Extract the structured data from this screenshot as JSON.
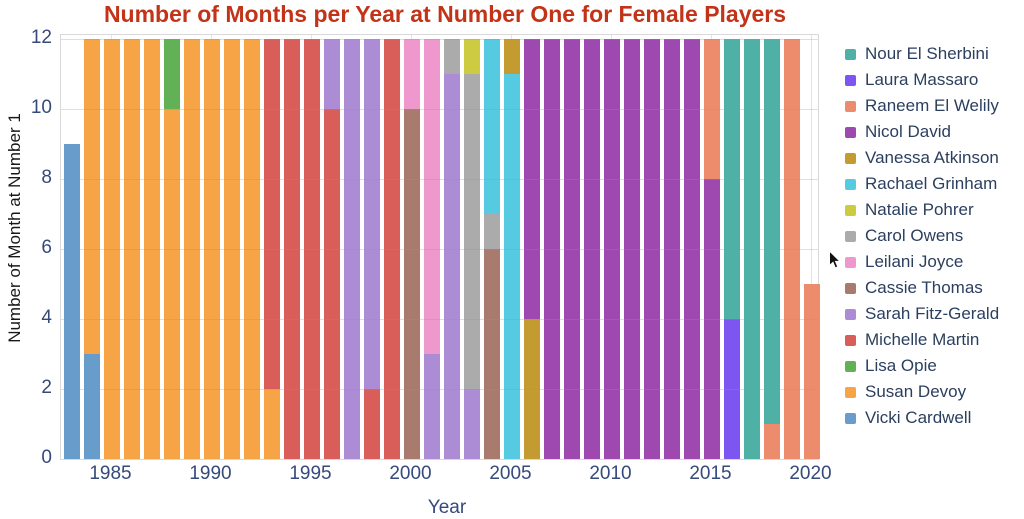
{
  "title": {
    "text": "Number of Months per Year at Number One for Female Players",
    "color": "#c23318"
  },
  "axes": {
    "x_label": "Year",
    "y_label": "Number of Month at Number 1",
    "x_ticks": [
      "1985",
      "1990",
      "1995",
      "2000",
      "2005",
      "2010",
      "2015",
      "2020"
    ],
    "y_ticks": [
      "0",
      "2",
      "4",
      "6",
      "8",
      "10",
      "12"
    ]
  },
  "legend": {
    "items": [
      {
        "label": "Nour El Sherbini",
        "color": "#4fb0a5"
      },
      {
        "label": "Laura Massaro",
        "color": "#7d55f0"
      },
      {
        "label": "Raneem El Welily",
        "color": "#ec8c6c"
      },
      {
        "label": "Nicol David",
        "color": "#9d49af"
      },
      {
        "label": "Vanessa Atkinson",
        "color": "#c39b30"
      },
      {
        "label": "Rachael Grinham",
        "color": "#55cae0"
      },
      {
        "label": "Natalie Pohrer",
        "color": "#cdcb42"
      },
      {
        "label": "Carol Owens",
        "color": "#ababab"
      },
      {
        "label": "Leilani Joyce",
        "color": "#ee98ce"
      },
      {
        "label": "Cassie Thomas",
        "color": "#a97b6e"
      },
      {
        "label": "Sarah Fitz-Gerald",
        "color": "#ac8dd5"
      },
      {
        "label": "Michelle Martin",
        "color": "#d95d58"
      },
      {
        "label": "Lisa Opie",
        "color": "#62b156"
      },
      {
        "label": "Susan Devoy",
        "color": "#f7a447"
      },
      {
        "label": "Vicki Cardwell",
        "color": "#679ccb"
      }
    ]
  },
  "chart_data": {
    "type": "bar",
    "stacked": true,
    "title": "Number of Months per Year at Number One for Female Players",
    "xlabel": "Year",
    "ylabel": "Number of Month at Number 1",
    "ylim": [
      0,
      12
    ],
    "x_range_years": [
      1983,
      2020
    ],
    "grid": true,
    "legend_position": "right",
    "bars": [
      {
        "year": 1983,
        "segments": [
          {
            "player": "Vicki Cardwell",
            "months": 9
          }
        ]
      },
      {
        "year": 1984,
        "segments": [
          {
            "player": "Vicki Cardwell",
            "months": 3
          },
          {
            "player": "Susan Devoy",
            "months": 9
          }
        ]
      },
      {
        "year": 1985,
        "segments": [
          {
            "player": "Susan Devoy",
            "months": 12
          }
        ]
      },
      {
        "year": 1986,
        "segments": [
          {
            "player": "Susan Devoy",
            "months": 12
          }
        ]
      },
      {
        "year": 1987,
        "segments": [
          {
            "player": "Susan Devoy",
            "months": 12
          }
        ]
      },
      {
        "year": 1988,
        "segments": [
          {
            "player": "Susan Devoy",
            "months": 10
          },
          {
            "player": "Lisa Opie",
            "months": 2
          }
        ]
      },
      {
        "year": 1989,
        "segments": [
          {
            "player": "Susan Devoy",
            "months": 12
          }
        ]
      },
      {
        "year": 1990,
        "segments": [
          {
            "player": "Susan Devoy",
            "months": 12
          }
        ]
      },
      {
        "year": 1991,
        "segments": [
          {
            "player": "Susan Devoy",
            "months": 12
          }
        ]
      },
      {
        "year": 1992,
        "segments": [
          {
            "player": "Susan Devoy",
            "months": 12
          }
        ]
      },
      {
        "year": 1993,
        "segments": [
          {
            "player": "Susan Devoy",
            "months": 2
          },
          {
            "player": "Michelle Martin",
            "months": 10
          }
        ]
      },
      {
        "year": 1994,
        "segments": [
          {
            "player": "Michelle Martin",
            "months": 12
          }
        ]
      },
      {
        "year": 1995,
        "segments": [
          {
            "player": "Michelle Martin",
            "months": 12
          }
        ]
      },
      {
        "year": 1996,
        "segments": [
          {
            "player": "Michelle Martin",
            "months": 10
          },
          {
            "player": "Sarah Fitz-Gerald",
            "months": 2
          }
        ]
      },
      {
        "year": 1997,
        "segments": [
          {
            "player": "Sarah Fitz-Gerald",
            "months": 12
          }
        ]
      },
      {
        "year": 1998,
        "segments": [
          {
            "player": "Michelle Martin",
            "months": 2
          },
          {
            "player": "Sarah Fitz-Gerald",
            "months": 10
          }
        ]
      },
      {
        "year": 1999,
        "segments": [
          {
            "player": "Michelle Martin",
            "months": 12
          }
        ]
      },
      {
        "year": 2000,
        "segments": [
          {
            "player": "Cassie Thomas",
            "months": 10
          },
          {
            "player": "Leilani Joyce",
            "months": 2
          }
        ]
      },
      {
        "year": 2001,
        "segments": [
          {
            "player": "Sarah Fitz-Gerald",
            "months": 3
          },
          {
            "player": "Leilani Joyce",
            "months": 9
          }
        ]
      },
      {
        "year": 2002,
        "segments": [
          {
            "player": "Sarah Fitz-Gerald",
            "months": 11
          },
          {
            "player": "Carol Owens",
            "months": 1
          }
        ]
      },
      {
        "year": 2003,
        "segments": [
          {
            "player": "Sarah Fitz-Gerald",
            "months": 2
          },
          {
            "player": "Carol Owens",
            "months": 9
          },
          {
            "player": "Natalie Pohrer",
            "months": 1
          }
        ]
      },
      {
        "year": 2004,
        "segments": [
          {
            "player": "Cassie Thomas",
            "months": 6
          },
          {
            "player": "Carol Owens",
            "months": 1
          },
          {
            "player": "Rachael Grinham",
            "months": 5
          }
        ]
      },
      {
        "year": 2005,
        "segments": [
          {
            "player": "Rachael Grinham",
            "months": 11
          },
          {
            "player": "Vanessa Atkinson",
            "months": 1
          }
        ]
      },
      {
        "year": 2006,
        "segments": [
          {
            "player": "Vanessa Atkinson",
            "months": 4
          },
          {
            "player": "Nicol David",
            "months": 8
          }
        ]
      },
      {
        "year": 2007,
        "segments": [
          {
            "player": "Nicol David",
            "months": 12
          }
        ]
      },
      {
        "year": 2008,
        "segments": [
          {
            "player": "Nicol David",
            "months": 12
          }
        ]
      },
      {
        "year": 2009,
        "segments": [
          {
            "player": "Nicol David",
            "months": 12
          }
        ]
      },
      {
        "year": 2010,
        "segments": [
          {
            "player": "Nicol David",
            "months": 12
          }
        ]
      },
      {
        "year": 2011,
        "segments": [
          {
            "player": "Nicol David",
            "months": 12
          }
        ]
      },
      {
        "year": 2012,
        "segments": [
          {
            "player": "Nicol David",
            "months": 12
          }
        ]
      },
      {
        "year": 2013,
        "segments": [
          {
            "player": "Nicol David",
            "months": 12
          }
        ]
      },
      {
        "year": 2014,
        "segments": [
          {
            "player": "Nicol David",
            "months": 12
          }
        ]
      },
      {
        "year": 2015,
        "segments": [
          {
            "player": "Nicol David",
            "months": 8
          },
          {
            "player": "Raneem El Welily",
            "months": 4
          }
        ]
      },
      {
        "year": 2016,
        "segments": [
          {
            "player": "Laura Massaro",
            "months": 4
          },
          {
            "player": "Nour El Sherbini",
            "months": 8
          }
        ]
      },
      {
        "year": 2017,
        "segments": [
          {
            "player": "Nour El Sherbini",
            "months": 12
          }
        ]
      },
      {
        "year": 2018,
        "segments": [
          {
            "player": "Raneem El Welily",
            "months": 1
          },
          {
            "player": "Nour El Sherbini",
            "months": 11
          }
        ]
      },
      {
        "year": 2019,
        "segments": [
          {
            "player": "Raneem El Welily",
            "months": 12
          }
        ]
      },
      {
        "year": 2020,
        "segments": [
          {
            "player": "Raneem El Welily",
            "months": 5
          }
        ]
      }
    ]
  }
}
